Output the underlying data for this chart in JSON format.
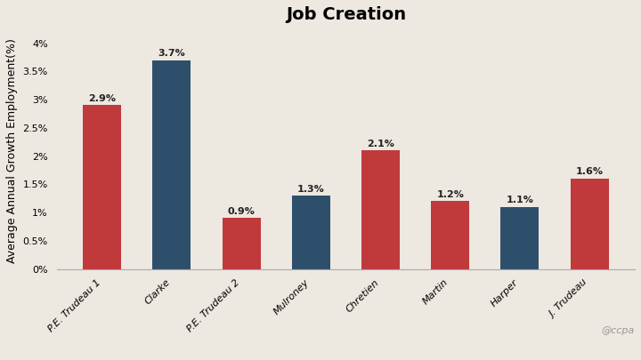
{
  "title": "Job Creation",
  "ylabel": "Average Annual Growth Employment(%)",
  "categories": [
    "P.E. Trudeau 1",
    "Clarke",
    "P.E. Trudeau 2",
    "Mulroney",
    "Chretien",
    "Martin",
    "Harper",
    "J. Trudeau"
  ],
  "values": [
    2.9,
    3.7,
    0.9,
    1.3,
    2.1,
    1.2,
    1.1,
    1.6
  ],
  "bar_colors": [
    "#c0393b",
    "#2e4f6b",
    "#c0393b",
    "#2e4f6b",
    "#c0393b",
    "#c0393b",
    "#2e4f6b",
    "#c0393b"
  ],
  "ylim": [
    0,
    4.2
  ],
  "yticks": [
    0,
    0.5,
    1.0,
    1.5,
    2.0,
    2.5,
    3.0,
    3.5,
    4.0
  ],
  "ytick_labels": [
    "0%",
    "0.5%",
    "1%",
    "1.5%",
    "2%",
    "2.5%",
    "3%",
    "3.5%",
    "4%"
  ],
  "background_color": "#ede8e0",
  "watermark": "@ccpa",
  "title_fontsize": 14,
  "label_fontsize": 8,
  "bar_label_fontsize": 8,
  "ylabel_fontsize": 9
}
